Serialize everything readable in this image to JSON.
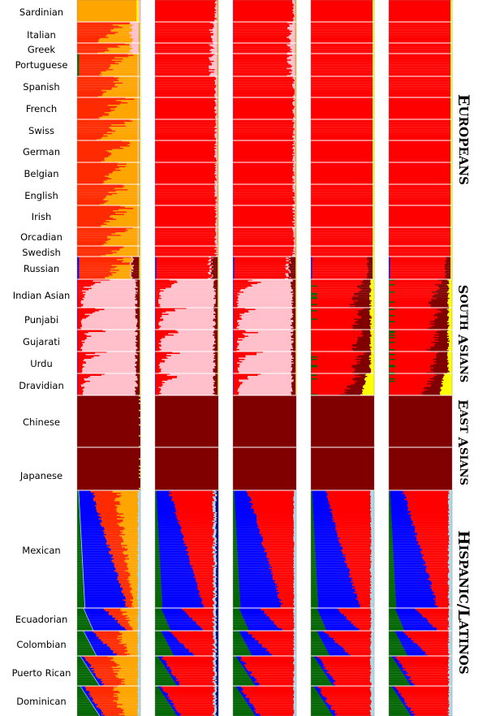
{
  "chart_data": {
    "type": "stacked-bar-admixture",
    "panels": 5,
    "colors": {
      "orange": "#FFA500",
      "red": "#FF0000",
      "red_orange": "#FF2A00",
      "pink": "#FFC0CB",
      "maroon": "#800000",
      "blue": "#0000FF",
      "green": "#006400",
      "yellow": "#FFFF00",
      "light_blue": "#ADD8E6",
      "navy": "#000080"
    },
    "groups": [
      {
        "label": "Europeans",
        "populations": [
          "Sardinian",
          "Italian",
          "Greek",
          "Portuguese",
          "Spanish",
          "French",
          "Swiss",
          "German",
          "Belgian",
          "English",
          "Irish",
          "Orcadian",
          "Swedish",
          "Russian"
        ]
      },
      {
        "label": "South Asians",
        "populations": [
          "Indian Asian",
          "Punjabi",
          "Gujarati",
          "Urdu",
          "Dravidian"
        ]
      },
      {
        "label": "East Asians",
        "populations": [
          "Chinese",
          "Japanese"
        ]
      },
      {
        "label": "Hispanic/Latinos",
        "populations": [
          "Mexican",
          "Ecuadorian",
          "Colombian",
          "Puerto Rican",
          "Dominican"
        ]
      }
    ],
    "populations": [
      {
        "name": "Sardinian",
        "group": "Europeans"
      },
      {
        "name": "Italian",
        "group": "Europeans"
      },
      {
        "name": "Greek",
        "group": "Europeans"
      },
      {
        "name": "Portuguese",
        "group": "Europeans"
      },
      {
        "name": "Spanish",
        "group": "Europeans"
      },
      {
        "name": "French",
        "group": "Europeans"
      },
      {
        "name": "Swiss",
        "group": "Europeans"
      },
      {
        "name": "German",
        "group": "Europeans"
      },
      {
        "name": "Belgian",
        "group": "Europeans"
      },
      {
        "name": "English",
        "group": "Europeans"
      },
      {
        "name": "Irish",
        "group": "Europeans"
      },
      {
        "name": "Orcadian",
        "group": "Europeans"
      },
      {
        "name": "Swedish",
        "group": "Europeans"
      },
      {
        "name": "Russian",
        "group": "Europeans"
      },
      {
        "name": "Indian Asian",
        "group": "South Asians"
      },
      {
        "name": "Punjabi",
        "group": "South Asians"
      },
      {
        "name": "Gujarati",
        "group": "South Asians"
      },
      {
        "name": "Urdu",
        "group": "South Asians"
      },
      {
        "name": "Dravidian",
        "group": "South Asians"
      },
      {
        "name": "Chinese",
        "group": "East Asians"
      },
      {
        "name": "Japanese",
        "group": "East Asians"
      },
      {
        "name": "Mexican",
        "group": "Hispanic/Latinos"
      },
      {
        "name": "Ecuadorian",
        "group": "Hispanic/Latinos"
      },
      {
        "name": "Colombian",
        "group": "Hispanic/Latinos"
      },
      {
        "name": "Puerto Rican",
        "group": "Hispanic/Latinos"
      },
      {
        "name": "Dominican",
        "group": "Hispanic/Latinos"
      }
    ],
    "panel_ancestry_proportions": [
      {
        "panel": 1,
        "Europeans": {
          "red_orange": 0.6,
          "orange": 0.35,
          "pink": 0.05
        },
        "South Asians": {
          "pink": 0.85,
          "red_orange": 0.1,
          "maroon": 0.05
        },
        "East Asians": {
          "maroon": 1.0
        },
        "Hispanic/Latinos": {
          "blue": 0.45,
          "red_orange": 0.25,
          "orange": 0.2,
          "green": 0.1
        }
      },
      {
        "panel": 2,
        "Europeans": {
          "red": 0.95,
          "pink": 0.05
        },
        "South Asians": {
          "pink": 0.85,
          "red": 0.1,
          "maroon": 0.05
        },
        "East Asians": {
          "maroon": 1.0
        },
        "Hispanic/Latinos": {
          "blue": 0.45,
          "red": 0.45,
          "green": 0.1
        }
      },
      {
        "panel": 3,
        "Europeans": {
          "red": 0.96,
          "pink": 0.04
        },
        "South Asians": {
          "pink": 0.85,
          "red": 0.1,
          "maroon": 0.05
        },
        "East Asians": {
          "maroon": 1.0
        },
        "Hispanic/Latinos": {
          "blue": 0.45,
          "red": 0.45,
          "green": 0.1
        }
      },
      {
        "panel": 4,
        "Europeans": {
          "red": 0.98,
          "yellow": 0.02
        },
        "South Asians": {
          "red": 0.75,
          "maroon": 0.15,
          "yellow": 0.1
        },
        "East Asians": {
          "maroon": 1.0
        },
        "Hispanic/Latinos": {
          "blue": 0.45,
          "red": 0.45,
          "green": 0.1
        }
      },
      {
        "panel": 5,
        "Europeans": {
          "red": 0.98,
          "yellow": 0.02
        },
        "South Asians": {
          "red": 0.75,
          "maroon": 0.15,
          "yellow": 0.1
        },
        "East Asians": {
          "maroon": 1.0
        },
        "Hispanic/Latinos": {
          "blue": 0.45,
          "red": 0.45,
          "green": 0.1
        }
      }
    ]
  }
}
